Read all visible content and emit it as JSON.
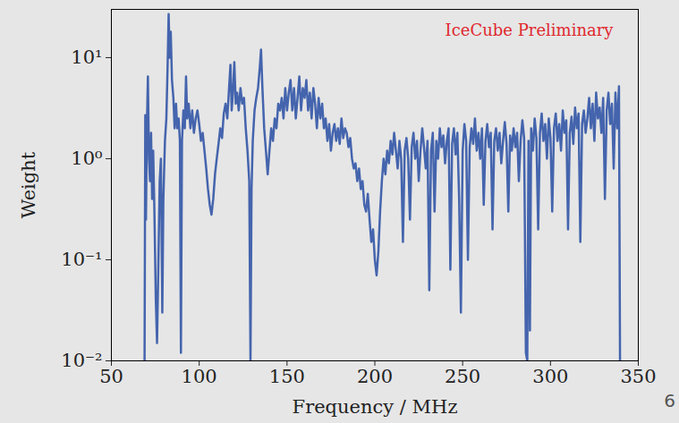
{
  "chart_data": {
    "type": "line",
    "x_label": "Frequency / MHz",
    "y_label": "Weight",
    "annotations": [
      {
        "text": "IceCube Preliminary",
        "color": "#e0282e"
      }
    ],
    "footer": "6",
    "color": "#4464ad",
    "log": "y",
    "grid": false,
    "xlim": [
      50,
      350
    ],
    "xticks": [
      50,
      100,
      150,
      200,
      250,
      300,
      350
    ],
    "ylim": [
      0.01,
      30
    ],
    "yticks": [
      {
        "value": 0.01,
        "label": "10⁻²"
      },
      {
        "value": 0.1,
        "label": "10⁻¹"
      },
      {
        "value": 1,
        "label": "10⁰"
      },
      {
        "value": 10,
        "label": "10¹"
      }
    ],
    "x": [
      68.9,
      69.3,
      69.7,
      70.2,
      70.8,
      71.4,
      72.0,
      72.6,
      73.2,
      73.8,
      74.5,
      75.3,
      76.0,
      76.8,
      77.5,
      78.2,
      79.0,
      79.6,
      80.5,
      81.3,
      82.0,
      82.6,
      83.2,
      83.8,
      84.5,
      85.3,
      86.0,
      86.8,
      87.5,
      88.3,
      89.0,
      89.6,
      90.2,
      91.0,
      91.8,
      92.5,
      93.2,
      94.0,
      95.0,
      96.0,
      97.0,
      98.0,
      99.0,
      100.0,
      101.0,
      102.0,
      103.0,
      104.0,
      105.0,
      106.0,
      107.0,
      108.0,
      109.0,
      110.0,
      111.0,
      112.0,
      113.0,
      114.0,
      115.0,
      116.0,
      117.0,
      117.8,
      118.5,
      119.2,
      120.0,
      120.8,
      121.6,
      122.5,
      123.5,
      124.5,
      125.5,
      126.5,
      127.5,
      128.5,
      129.2,
      129.8,
      130.5,
      131.5,
      132.5,
      133.5,
      134.5,
      135.2,
      136.0,
      137.0,
      138.0,
      139.0,
      140.0,
      141.0,
      142.0,
      143.0,
      144.0,
      145.0,
      146.0,
      147.0,
      148.0,
      149.0,
      150.0,
      151.0,
      152.0,
      153.0,
      154.0,
      155.0,
      156.0,
      157.0,
      158.0,
      159.0,
      160.0,
      161.0,
      162.0,
      163.0,
      164.0,
      165.0,
      166.0,
      167.0,
      168.0,
      169.0,
      170.0,
      171.0,
      172.0,
      173.0,
      174.0,
      175.0,
      176.0,
      177.0,
      178.0,
      179.0,
      180.0,
      181.0,
      182.0,
      183.0,
      184.0,
      185.0,
      186.0,
      187.0,
      188.0,
      189.0,
      190.0,
      191.0,
      192.0,
      193.0,
      194.0,
      195.0,
      196.0,
      197.0,
      198.0,
      199.0,
      200.0,
      201.0,
      202.0,
      203.0,
      204.0,
      205.0,
      206.0,
      207.0,
      208.0,
      209.0,
      210.0,
      211.0,
      212.0,
      213.0,
      214.0,
      215.0,
      216.0,
      217.0,
      218.0,
      219.0,
      220.0,
      221.0,
      222.0,
      223.0,
      224.0,
      225.0,
      226.0,
      227.0,
      228.0,
      229.0,
      230.0,
      231.0,
      232.0,
      233.0,
      234.0,
      235.0,
      236.0,
      237.0,
      238.0,
      239.0,
      240.0,
      241.0,
      242.0,
      243.0,
      244.0,
      245.0,
      246.0,
      247.0,
      248.0,
      249.0,
      250.0,
      251.0,
      252.0,
      253.0,
      254.0,
      255.0,
      256.0,
      257.0,
      258.0,
      259.0,
      260.0,
      261.0,
      262.0,
      263.0,
      264.0,
      265.0,
      266.0,
      267.0,
      268.0,
      269.0,
      270.0,
      271.0,
      272.0,
      273.0,
      274.0,
      275.0,
      276.0,
      277.0,
      278.0,
      279.0,
      280.0,
      281.0,
      282.0,
      283.0,
      284.0,
      285.0,
      286.0,
      286.8,
      287.5,
      288.3,
      289.0,
      290.0,
      291.0,
      292.0,
      293.0,
      294.0,
      295.0,
      296.0,
      297.0,
      298.0,
      299.0,
      300.0,
      301.0,
      302.0,
      303.0,
      304.0,
      305.0,
      306.0,
      307.0,
      308.0,
      309.0,
      310.0,
      311.0,
      312.0,
      313.0,
      314.0,
      315.0,
      316.0,
      317.0,
      318.0,
      319.0,
      320.0,
      321.0,
      322.0,
      323.0,
      324.0,
      325.0,
      326.0,
      327.0,
      328.0,
      329.0,
      330.0,
      331.0,
      332.0,
      333.0,
      334.0,
      335.0,
      336.0,
      337.0,
      338.0,
      339.0,
      339.6
    ],
    "values": [
      0.01,
      2.7,
      0.25,
      2.0,
      6.5,
      1.0,
      0.6,
      1.8,
      0.4,
      1.2,
      0.3,
      0.04,
      0.015,
      0.1,
      0.6,
      1.0,
      0.03,
      0.4,
      1.5,
      2.5,
      8,
      27,
      10,
      18,
      6,
      4,
      2,
      3.5,
      2,
      2.5,
      1.5,
      0.012,
      1.5,
      3,
      2,
      6.5,
      2.5,
      3.5,
      2,
      3,
      1.8,
      2.5,
      3,
      2.2,
      1.5,
      1.8,
      1.2,
      0.8,
      0.5,
      0.35,
      0.28,
      0.4,
      0.7,
      1.0,
      1.4,
      2.0,
      1.6,
      2.8,
      3.5,
      2.5,
      5,
      8.5,
      3,
      4.5,
      9,
      3.5,
      4.5,
      3,
      5,
      3.5,
      4,
      2,
      1.2,
      0.6,
      0.01,
      0.5,
      1.5,
      3,
      4,
      5,
      8,
      12,
      5,
      2,
      1.2,
      0.7,
      1.2,
      2,
      1.5,
      2.5,
      2,
      3.5,
      3,
      4,
      2.5,
      5,
      3,
      4.5,
      6,
      3,
      5,
      2.5,
      4,
      6.5,
      3,
      5,
      4,
      6,
      3,
      4.5,
      2.5,
      5,
      3.5,
      2,
      4,
      2.5,
      3.5,
      2,
      2.5,
      1.5,
      2.2,
      1.2,
      1.8,
      2.2,
      1.5,
      2,
      1.4,
      2.5,
      1.6,
      2,
      1.8,
      1.3,
      1.6,
      1.0,
      0.8,
      0.9,
      0.6,
      0.8,
      0.5,
      0.6,
      0.35,
      0.3,
      0.45,
      0.25,
      0.15,
      0.2,
      0.1,
      0.07,
      0.12,
      0.3,
      0.6,
      1.0,
      0.7,
      1.2,
      0.9,
      1.5,
      1.1,
      1.8,
      1.2,
      0.8,
      1.5,
      1.0,
      0.15,
      1.2,
      1.6,
      1.0,
      0.25,
      1.3,
      1.8,
      1.0,
      1.5,
      0.6,
      1.2,
      2.0,
      1.3,
      0.8,
      1.5,
      0.05,
      1.2,
      1.8,
      0.3,
      1.5,
      1.0,
      2.0,
      1.3,
      1.7,
      0.9,
      1.5,
      2.0,
      0.08,
      1.4,
      2.0,
      1.1,
      1.8,
      0.4,
      0.03,
      1.2,
      2.2,
      1.5,
      0.1,
      1.3,
      2.0,
      1.4,
      2.5,
      1.2,
      1.8,
      1.0,
      2.0,
      0.35,
      1.5,
      2.2,
      1.3,
      1.8,
      0.2,
      1.5,
      2.0,
      1.2,
      1.8,
      0.9,
      1.5,
      2.3,
      1.4,
      0.3,
      1.7,
      1.2,
      2.0,
      1.3,
      1.8,
      0.6,
      1.5,
      2.4,
      1.6,
      0.012,
      0.01,
      1.5,
      0.02,
      2.0,
      1.2,
      2.5,
      1.6,
      0.2,
      1.8,
      2.8,
      1.5,
      2.2,
      1.0,
      2.5,
      1.6,
      0.3,
      2.0,
      2.8,
      1.5,
      2.2,
      1.2,
      3.0,
      1.8,
      2.4,
      0.2,
      1.8,
      2.6,
      1.4,
      3.2,
      2.0,
      2.8,
      0.15,
      2.2,
      3.0,
      1.8,
      2.5,
      4.0,
      2.0,
      3.5,
      1.5,
      4.5,
      2.5,
      3.2,
      1.8,
      4.0,
      0.4,
      3.0,
      4.5,
      2.2,
      3.5,
      0.8,
      4.5,
      2.0,
      5.2,
      0.01
    ]
  }
}
